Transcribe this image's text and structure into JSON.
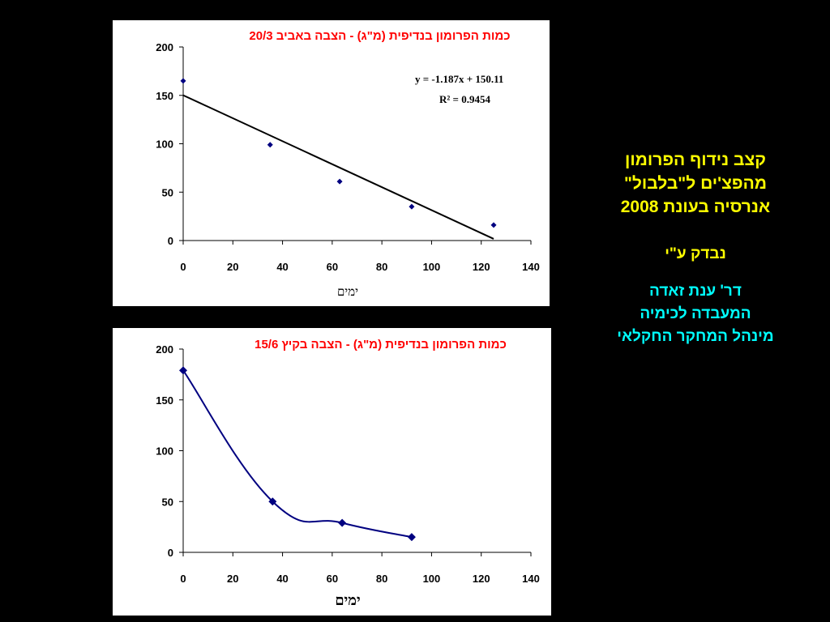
{
  "slide": {
    "background": "#000000",
    "title_lines": [
      "קצב נידוף הפרומון",
      "מהפצ'ים ל\"בלבול\"",
      "אנרסיה בעונת 2008"
    ],
    "checked_by": "נבדק ע\"י",
    "author_lines": [
      "דר' ענת זאדה",
      "המעבדה לכימיה",
      "מינהל המחקר החקלאי"
    ],
    "title_color": "#ffff00",
    "author_color": "#00ffff"
  },
  "chart_data": [
    {
      "type": "scatter",
      "title": "כמות הפרומון בנדיפית (מ\"ג) - הצבה באביב 20/3",
      "xlabel": "ימים",
      "ylabel": "",
      "xlim": [
        0,
        140
      ],
      "ylim": [
        0,
        200
      ],
      "x_ticks": [
        0,
        20,
        40,
        60,
        80,
        100,
        120,
        140
      ],
      "y_ticks": [
        0,
        50,
        100,
        150,
        200
      ],
      "grid": false,
      "series": [
        {
          "x": [
            0,
            35,
            63,
            92,
            125
          ],
          "values": [
            165,
            99,
            61,
            35,
            16
          ],
          "color": "#000080"
        }
      ],
      "trendline": {
        "slope": -1.187,
        "intercept": 150.11,
        "x_range": [
          0,
          125
        ],
        "color": "#000000"
      },
      "equation": "y = -1.187x + 150.11",
      "r_squared": "R² = 0.9454"
    },
    {
      "type": "line",
      "title": "כמות הפרומון בנדיפית (מ\"ג) - הצבה בקיץ 15/6",
      "xlabel": "ימים",
      "ylabel": "",
      "xlim": [
        0,
        140
      ],
      "ylim": [
        0,
        200
      ],
      "x_ticks": [
        0,
        20,
        40,
        60,
        80,
        100,
        120,
        140
      ],
      "y_ticks": [
        0,
        50,
        100,
        150,
        200
      ],
      "grid": false,
      "series": [
        {
          "x": [
            0,
            36,
            64,
            92
          ],
          "values": [
            179,
            50,
            29,
            15
          ],
          "color": "#000080"
        }
      ]
    }
  ]
}
